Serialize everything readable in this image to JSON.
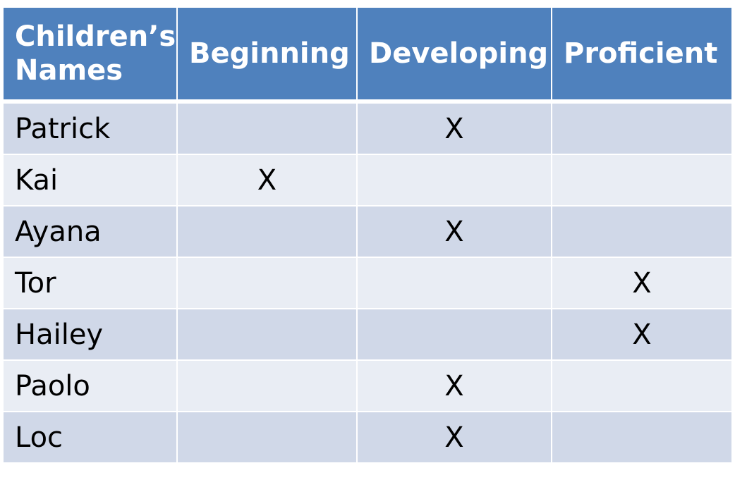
{
  "table": {
    "headers": [
      "Children’s Names",
      "Beginning",
      "Developing",
      "Proficient"
    ],
    "rows": [
      {
        "name": "Patrick",
        "beginning": "",
        "developing": "X",
        "proficient": ""
      },
      {
        "name": "Kai",
        "beginning": "X",
        "developing": "",
        "proficient": ""
      },
      {
        "name": "Ayana",
        "beginning": "",
        "developing": "X",
        "proficient": ""
      },
      {
        "name": "Tor",
        "beginning": "",
        "developing": "",
        "proficient": "X"
      },
      {
        "name": "Hailey",
        "beginning": "",
        "developing": "",
        "proficient": "X"
      },
      {
        "name": "Paolo",
        "beginning": "",
        "developing": "X",
        "proficient": ""
      },
      {
        "name": "Loc",
        "beginning": "",
        "developing": "X",
        "proficient": ""
      }
    ]
  },
  "colors": {
    "header_background": "#4f81bd",
    "header_text": "#ffffff",
    "row_band_dark": "#d0d8e8",
    "row_band_light": "#e9edf4"
  }
}
